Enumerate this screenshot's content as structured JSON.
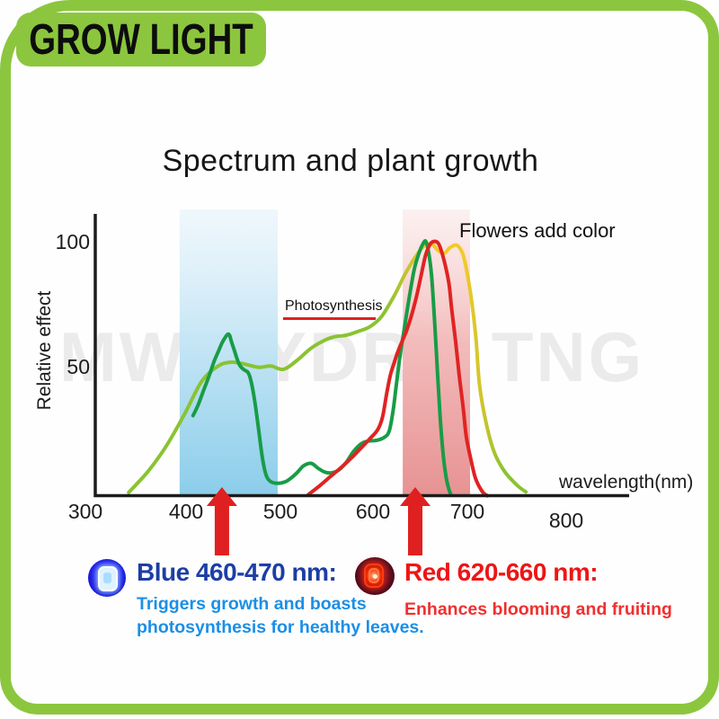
{
  "header": {
    "brand": "GROW LIGHT",
    "accent_color": "#8cc63e"
  },
  "watermark": "MW HYDRO TNG",
  "chart_data": {
    "type": "line",
    "title": "Spectrum and plant growth",
    "xlabel": "wavelength(nm)",
    "ylabel": "Relative effect",
    "xlim": [
      300,
      800
    ],
    "ylim": [
      0,
      110
    ],
    "x_ticks": [
      300,
      400,
      500,
      600,
      700,
      800
    ],
    "y_ticks": [
      50,
      100
    ],
    "grid": false,
    "legend_position": "none",
    "bands": [
      {
        "name": "blue-light-band",
        "from_nm": 398,
        "to_nm": 500,
        "top_color": "rgba(226,242,250,0.55)",
        "mid_color": "#c6e6f5",
        "bottom_color": "#8bcdea"
      },
      {
        "name": "red-light-band",
        "from_nm": 630,
        "to_nm": 700,
        "top_color": "rgba(250,226,226,0.5)",
        "mid_color": "#f3bdbd",
        "bottom_color": "#e79292"
      }
    ],
    "series": [
      {
        "name": "photosynthesis-action-spectrum",
        "color": "#8ac332",
        "peak_color": "#f0ca28",
        "blend_color": "#cdc42e",
        "points": [
          [
            345,
            1.8
          ],
          [
            365,
            10
          ],
          [
            384,
            20
          ],
          [
            403,
            32.5
          ],
          [
            421,
            45.5
          ],
          [
            438,
            51.5
          ],
          [
            452,
            53
          ],
          [
            465,
            52.3
          ],
          [
            480,
            51
          ],
          [
            493,
            51.5
          ],
          [
            506,
            50.2
          ],
          [
            520,
            53.7
          ],
          [
            534,
            58.3
          ],
          [
            548,
            61.5
          ],
          [
            559,
            63
          ],
          [
            571,
            63.6
          ],
          [
            583,
            65
          ],
          [
            596,
            67
          ],
          [
            608,
            71
          ],
          [
            621,
            79
          ],
          [
            632,
            87.3
          ],
          [
            643,
            94.3
          ],
          [
            652,
            98.6
          ],
          [
            660,
            99.6
          ],
          [
            666,
            97.2
          ],
          [
            673,
            95.8
          ],
          [
            679,
            98
          ],
          [
            686,
            99
          ],
          [
            692,
            96
          ],
          [
            696,
            90
          ],
          [
            701,
            78.8
          ],
          [
            706,
            63
          ],
          [
            710,
            43.5
          ],
          [
            717,
            28.6
          ],
          [
            725,
            17.7
          ],
          [
            736,
            10
          ],
          [
            749,
            4.6
          ],
          [
            758,
            2
          ]
        ]
      },
      {
        "name": "blue-absorption",
        "color": "#189c47",
        "points": [
          [
            412,
            32
          ],
          [
            417,
            36
          ],
          [
            423,
            42
          ],
          [
            429,
            48
          ],
          [
            434,
            53.5
          ],
          [
            438,
            57
          ],
          [
            442,
            60.5
          ],
          [
            445,
            62.5
          ],
          [
            448,
            64
          ],
          [
            450,
            63.5
          ],
          [
            452,
            61
          ],
          [
            455,
            57.5
          ],
          [
            458,
            54
          ],
          [
            461,
            51.5
          ],
          [
            465,
            50
          ],
          [
            469,
            49
          ],
          [
            472,
            46
          ],
          [
            476,
            38
          ],
          [
            480,
            27
          ],
          [
            484,
            15.5
          ],
          [
            488,
            8.5
          ],
          [
            493,
            6
          ],
          [
            500,
            5.4
          ],
          [
            508,
            6
          ],
          [
            514,
            7.5
          ],
          [
            520,
            9.5
          ],
          [
            527,
            12.3
          ],
          [
            535,
            13.2
          ],
          [
            542,
            11.3
          ],
          [
            549,
            9.8
          ],
          [
            556,
            9.5
          ],
          [
            563,
            10.5
          ],
          [
            571,
            13.5
          ],
          [
            579,
            18
          ],
          [
            587,
            21
          ],
          [
            594,
            22
          ],
          [
            603,
            22.3
          ],
          [
            611,
            23.5
          ],
          [
            616,
            26
          ],
          [
            620,
            34
          ],
          [
            623,
            43
          ],
          [
            627,
            55
          ],
          [
            632,
            67
          ],
          [
            637,
            79
          ],
          [
            642,
            89.5
          ],
          [
            647,
            96
          ],
          [
            651,
            99.5
          ],
          [
            654,
            100.5
          ],
          [
            657,
            96
          ],
          [
            660,
            87
          ],
          [
            663,
            70
          ],
          [
            666,
            50
          ],
          [
            669,
            31
          ],
          [
            672,
            17
          ],
          [
            675,
            8
          ],
          [
            678,
            3
          ],
          [
            680,
            1
          ]
        ]
      },
      {
        "name": "red-absorption",
        "color": "#e02323",
        "points": [
          [
            532,
            1
          ],
          [
            543,
            4.2
          ],
          [
            554,
            7.8
          ],
          [
            565,
            11.3
          ],
          [
            577,
            15.5
          ],
          [
            587,
            19.4
          ],
          [
            596,
            23
          ],
          [
            604,
            26.5
          ],
          [
            609,
            31.4
          ],
          [
            613,
            40
          ],
          [
            617,
            47.7
          ],
          [
            621,
            52.7
          ],
          [
            625,
            57.2
          ],
          [
            630,
            61.8
          ],
          [
            634,
            65.4
          ],
          [
            638,
            70
          ],
          [
            642,
            75.3
          ],
          [
            646,
            81.6
          ],
          [
            650,
            88.7
          ],
          [
            654,
            95.4
          ],
          [
            659,
            99.6
          ],
          [
            664,
            100.5
          ],
          [
            668,
            99
          ],
          [
            673,
            93
          ],
          [
            678,
            84
          ],
          [
            681,
            73.5
          ],
          [
            685,
            61
          ],
          [
            689,
            47
          ],
          [
            693,
            34.6
          ],
          [
            696,
            24
          ],
          [
            701,
            14.5
          ],
          [
            706,
            7
          ],
          [
            713,
            2
          ],
          [
            718,
            0.5
          ]
        ]
      }
    ],
    "arrows": {
      "color": "#e02020",
      "positions_nm": [
        442,
        643
      ]
    },
    "annotations": [
      {
        "text": "Photosynthesis",
        "underline_color": "#e02020"
      },
      {
        "text": "Flowers add color"
      }
    ]
  },
  "footer": {
    "blue": {
      "heading": "Blue 460-470 nm:",
      "line1": "Triggers growth and boasts",
      "line2": "photosynthesis for healthy leaves.",
      "heading_color": "#1c3ea6",
      "body_color": "#1b8fe6"
    },
    "red": {
      "heading": "Red 620-660 nm:",
      "body": "Enhances blooming and fruiting",
      "heading_color": "#ee1515",
      "body_color": "#f03030"
    }
  }
}
